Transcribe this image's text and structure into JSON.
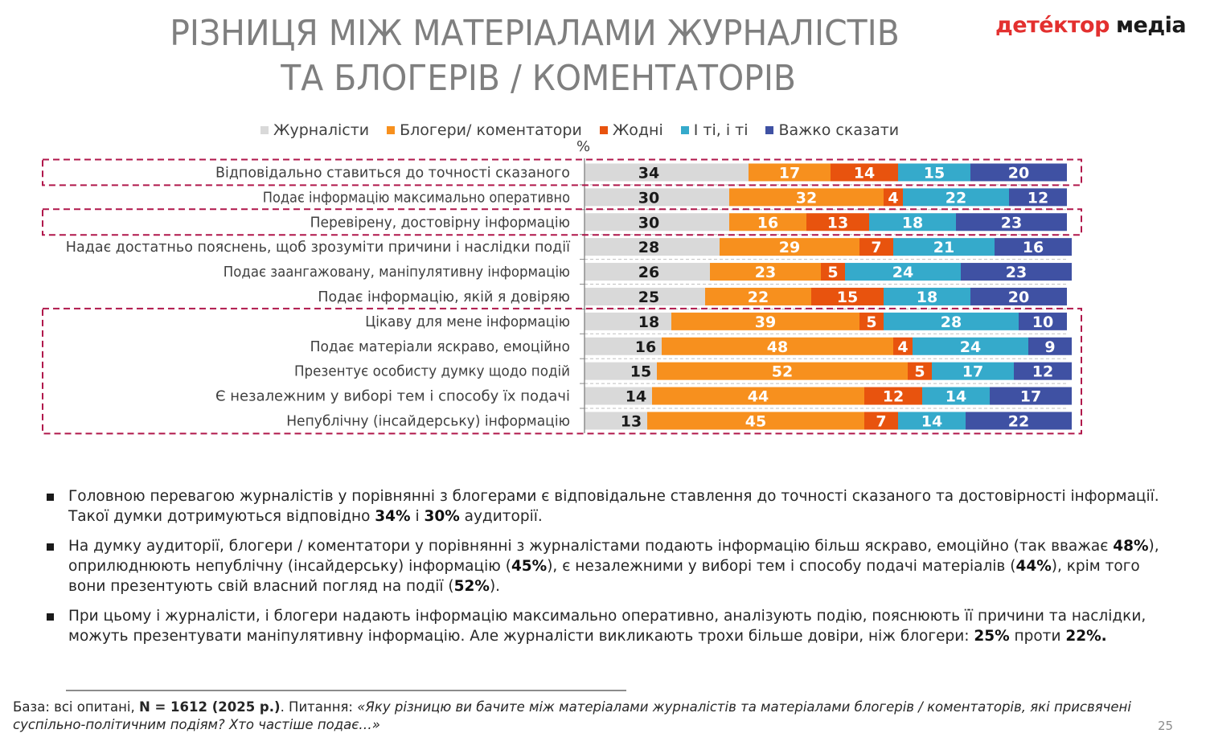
{
  "title": {
    "line1": "РІЗНИЦЯ МІЖ МАТЕРІАЛАМИ ЖУРНАЛІСТІВ",
    "line2": "ТА БЛОГЕРІВ / КОМЕНТАТОРІВ"
  },
  "logo": {
    "red_part": "детéктор",
    "black_part": "медіа"
  },
  "chart_data": {
    "type": "bar",
    "orientation": "horizontal",
    "stacked": true,
    "unit_label": "%",
    "xlim": [
      0,
      100
    ],
    "legend_position": "top",
    "categories": [
      "Відповідально ставиться до точності сказаного",
      "Подає інформацію максимально оперативно",
      "Перевірену, достовірну інформацію",
      "Надає достатньо пояснень, щоб зрозуміти причини і наслідки події",
      "Подає заангажовану, маніпулятивну інформацію",
      "Подає інформацію, якій я довіряю",
      "Цікаву для мене інформацію",
      "Подає матеріали яскраво, емоційно",
      "Презентує особисту думку щодо подій",
      "Є незалежним у виборі тем і способу їх подачі",
      "Непублічну (інсайдерську) інформацію"
    ],
    "series": [
      {
        "name": "Журналісти",
        "color": "#d9d9d9",
        "label_color": "#1a1a1a",
        "values": [
          34,
          30,
          30,
          28,
          26,
          25,
          18,
          16,
          15,
          14,
          13
        ]
      },
      {
        "name": "Блогери/ коментатори",
        "color": "#f7901e",
        "label_color": "#ffffff",
        "values": [
          17,
          32,
          16,
          29,
          23,
          22,
          39,
          48,
          52,
          44,
          45
        ]
      },
      {
        "name": "Жодні",
        "color": "#e8530e",
        "label_color": "#ffffff",
        "values": [
          14,
          4,
          13,
          7,
          5,
          15,
          5,
          4,
          5,
          12,
          7
        ]
      },
      {
        "name": "І ті, і ті",
        "color": "#35aacb",
        "label_color": "#ffffff",
        "values": [
          15,
          22,
          18,
          21,
          24,
          18,
          28,
          24,
          17,
          14,
          14
        ]
      },
      {
        "name": "Важко сказати",
        "color": "#3f51a3",
        "label_color": "#ffffff",
        "values": [
          20,
          12,
          23,
          16,
          23,
          20,
          10,
          9,
          12,
          17,
          22
        ]
      }
    ],
    "highlight_groups": [
      [
        0
      ],
      [
        2
      ],
      [
        6,
        7,
        8,
        9,
        10
      ]
    ],
    "highlight_color": "#b0174b"
  },
  "bullets": [
    {
      "parts": [
        {
          "text": "Головною перевагою журналістів у порівнянні з блогерами є відповідальне ставлення до точності сказаного та достовірності інформації. Такої думки дотримуються відповідно ",
          "bold": false
        },
        {
          "text": "34%",
          "bold": true
        },
        {
          "text": " і ",
          "bold": false
        },
        {
          "text": "30%",
          "bold": true
        },
        {
          "text": " аудиторії.",
          "bold": false
        }
      ]
    },
    {
      "parts": [
        {
          "text": "На думку аудиторії,  блогери / коментатори у порівнянні з журналістами подають інформацію більш яскраво, емоційно (так вважає ",
          "bold": false
        },
        {
          "text": "48%",
          "bold": true
        },
        {
          "text": "), оприлюднюють непублічну (інсайдерську) інформацію (",
          "bold": false
        },
        {
          "text": "45%",
          "bold": true
        },
        {
          "text": "), є незалежними у виборі тем і способу подачі матеріалів (",
          "bold": false
        },
        {
          "text": "44%",
          "bold": true
        },
        {
          "text": "), крім того вони презентують свій власний погляд на події (",
          "bold": false
        },
        {
          "text": "52%",
          "bold": true
        },
        {
          "text": ").",
          "bold": false
        }
      ]
    },
    {
      "parts": [
        {
          "text": "При цьому і журналісти, і блогери надають інформацію максимально оперативно, аналізують подію, пояснюють її причини та наслідки, можуть презентувати маніпулятивну інформацію. Але журналісти викликають трохи більше довіри, ніж блогери: ",
          "bold": false
        },
        {
          "text": "25%",
          "bold": true
        },
        {
          "text": " проти ",
          "bold": false
        },
        {
          "text": "22%.",
          "bold": true
        }
      ]
    }
  ],
  "footer": {
    "base_label": "База: всі опитані, ",
    "sample": "N = 1612 (2025 р.)",
    "question_label": ". Питання: ",
    "question": "«Яку різницю ви бачите між матеріалами журналістів та матеріалами блогерів / коментаторів, які присвячені суспільно-політичним подіям? Хто частіше подає…»"
  },
  "page_number": "25"
}
